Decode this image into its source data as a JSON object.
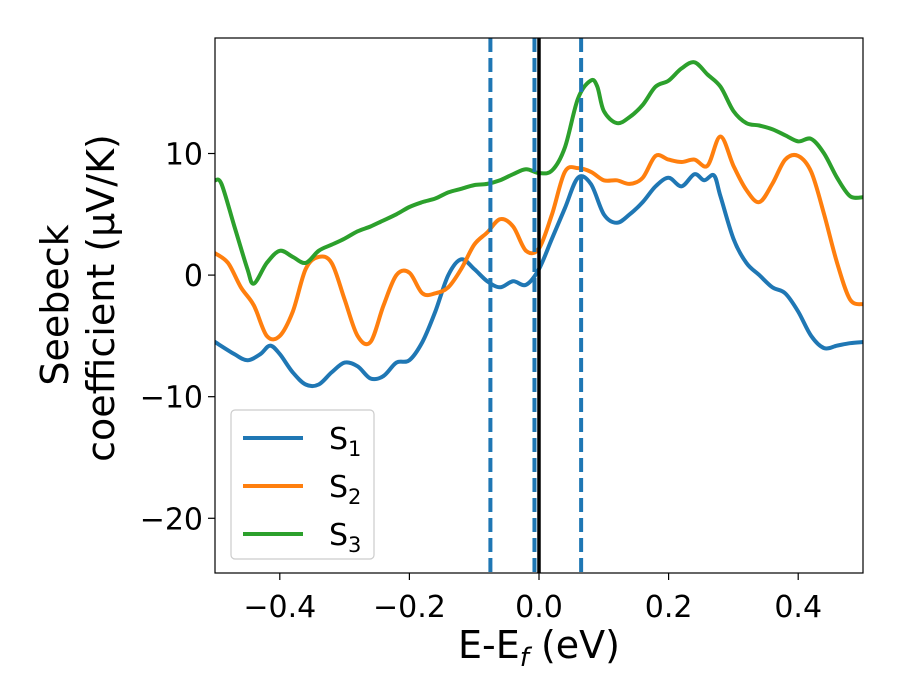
{
  "chart_data": {
    "type": "line",
    "xlabel_main": "E-E",
    "xlabel_sub": "f",
    "xlabel_tail": " (eV)",
    "ylabel_line1": "Seebeck",
    "ylabel_line2": "coefficient  (μV/K)",
    "xlim": [
      -0.5,
      0.5
    ],
    "ylim": [
      -24.5,
      19.5
    ],
    "xticks": [
      -0.4,
      -0.2,
      0.0,
      0.2,
      0.4
    ],
    "xtick_labels": [
      "−0.4",
      "−0.2",
      "0.0",
      "0.2",
      "0.4"
    ],
    "yticks": [
      -20,
      -10,
      0,
      10
    ],
    "ytick_labels": [
      "−20",
      "−10",
      "0",
      "10"
    ],
    "vlines": [
      {
        "x": -0.075,
        "style": "dashed",
        "color": "#1f77b4"
      },
      {
        "x": -0.007,
        "style": "dashed",
        "color": "#1f77b4"
      },
      {
        "x": 0.0,
        "style": "solid",
        "color": "#000000"
      },
      {
        "x": 0.065,
        "style": "dashed",
        "color": "#1f77b4"
      }
    ],
    "legend_position": "lower-left",
    "series": [
      {
        "name": "S",
        "sub": "1",
        "color": "#1f77b4",
        "x": [
          -0.5,
          -0.47,
          -0.45,
          -0.43,
          -0.415,
          -0.4,
          -0.38,
          -0.36,
          -0.34,
          -0.32,
          -0.3,
          -0.28,
          -0.26,
          -0.24,
          -0.22,
          -0.2,
          -0.18,
          -0.16,
          -0.14,
          -0.12,
          -0.1,
          -0.08,
          -0.06,
          -0.04,
          -0.02,
          0.0,
          0.02,
          0.04,
          0.06,
          0.08,
          0.1,
          0.12,
          0.14,
          0.16,
          0.18,
          0.2,
          0.22,
          0.24,
          0.255,
          0.27,
          0.28,
          0.3,
          0.32,
          0.34,
          0.36,
          0.38,
          0.4,
          0.42,
          0.44,
          0.46,
          0.48,
          0.5
        ],
        "y": [
          -5.5,
          -6.5,
          -7.0,
          -6.5,
          -5.8,
          -6.5,
          -8.0,
          -9.0,
          -9.0,
          -8.0,
          -7.2,
          -7.5,
          -8.5,
          -8.3,
          -7.2,
          -7.0,
          -5.5,
          -3.0,
          0.0,
          1.3,
          0.5,
          -0.5,
          -1.0,
          -0.5,
          -0.8,
          0.5,
          3.0,
          5.5,
          8.0,
          7.5,
          5.0,
          4.3,
          5.0,
          6.0,
          7.3,
          8.0,
          7.3,
          8.3,
          7.8,
          8.2,
          6.5,
          3.0,
          1.0,
          0.0,
          -1.0,
          -1.5,
          -3.0,
          -5.0,
          -6.0,
          -5.8,
          -5.6,
          -5.5
        ]
      },
      {
        "name": "S",
        "sub": "2",
        "color": "#ff7f0e",
        "x": [
          -0.5,
          -0.48,
          -0.46,
          -0.44,
          -0.42,
          -0.4,
          -0.38,
          -0.36,
          -0.34,
          -0.32,
          -0.3,
          -0.28,
          -0.26,
          -0.24,
          -0.22,
          -0.2,
          -0.18,
          -0.16,
          -0.14,
          -0.12,
          -0.1,
          -0.08,
          -0.06,
          -0.04,
          -0.02,
          0.0,
          0.02,
          0.04,
          0.06,
          0.08,
          0.1,
          0.12,
          0.14,
          0.16,
          0.18,
          0.2,
          0.22,
          0.24,
          0.26,
          0.28,
          0.3,
          0.32,
          0.34,
          0.36,
          0.38,
          0.4,
          0.42,
          0.44,
          0.46,
          0.48,
          0.5
        ],
        "y": [
          1.8,
          1.0,
          -1.0,
          -2.5,
          -5.0,
          -5.0,
          -3.0,
          0.5,
          1.5,
          1.0,
          -2.0,
          -5.0,
          -5.5,
          -2.5,
          0.0,
          0.2,
          -1.5,
          -1.5,
          -1.0,
          0.5,
          2.5,
          3.5,
          4.6,
          4.0,
          2.0,
          2.2,
          5.0,
          8.5,
          8.8,
          8.5,
          7.8,
          7.8,
          7.5,
          8.0,
          9.8,
          9.5,
          9.3,
          9.5,
          9.0,
          11.4,
          9.0,
          7.0,
          6.0,
          7.5,
          9.5,
          9.8,
          8.5,
          5.0,
          1.0,
          -2.0,
          -2.4
        ]
      },
      {
        "name": "S",
        "sub": "3",
        "color": "#2ca02c",
        "x": [
          -0.5,
          -0.49,
          -0.47,
          -0.45,
          -0.44,
          -0.42,
          -0.4,
          -0.38,
          -0.36,
          -0.34,
          -0.32,
          -0.3,
          -0.28,
          -0.26,
          -0.24,
          -0.22,
          -0.2,
          -0.18,
          -0.16,
          -0.14,
          -0.12,
          -0.1,
          -0.08,
          -0.06,
          -0.04,
          -0.02,
          0.0,
          0.02,
          0.04,
          0.06,
          0.08,
          0.09,
          0.1,
          0.12,
          0.14,
          0.16,
          0.18,
          0.2,
          0.22,
          0.24,
          0.26,
          0.28,
          0.3,
          0.32,
          0.34,
          0.36,
          0.38,
          0.4,
          0.42,
          0.44,
          0.46,
          0.48,
          0.5
        ],
        "y": [
          7.8,
          7.5,
          4.0,
          0.5,
          -0.7,
          1.0,
          2.0,
          1.5,
          1.0,
          2.0,
          2.5,
          3.0,
          3.6,
          4.0,
          4.5,
          5.0,
          5.6,
          6.0,
          6.3,
          6.8,
          7.1,
          7.4,
          7.5,
          7.8,
          8.3,
          8.7,
          8.4,
          8.6,
          10.5,
          14.5,
          16.0,
          15.5,
          13.5,
          12.5,
          13.0,
          14.0,
          15.5,
          16.0,
          17.0,
          17.5,
          16.5,
          15.5,
          13.5,
          12.5,
          12.3,
          12.0,
          11.5,
          11.0,
          11.2,
          10.0,
          8.0,
          6.5,
          6.4
        ]
      }
    ]
  }
}
